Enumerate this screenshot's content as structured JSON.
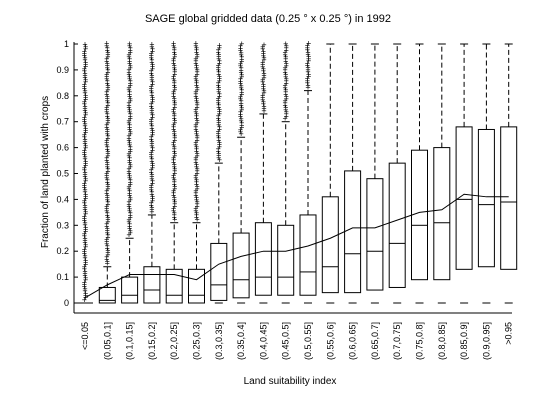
{
  "chart_data": {
    "type": "box",
    "title": "SAGE global gridded data (0.25 ° x 0.25 °) in 1992",
    "xlabel": "Land suitability index",
    "ylabel": "Fraction of land planted with crops",
    "ylim": [
      0,
      1
    ],
    "yticks": [
      "0",
      "0.1",
      "0.2",
      "0.3",
      "0.4",
      "0.5",
      "0.6",
      "0.7",
      "0.8",
      "0.9",
      "1"
    ],
    "categories": [
      "<=0.05",
      "(0.05,0.1]",
      "(0.1,0.15]",
      "(0.15,0.2]",
      "(0.2,0.25]",
      "(0.25,0.3]",
      "(0.3,0.35]",
      "(0.35,0.4]",
      "(0.4,0.45]",
      "(0.45,0.5]",
      "(0.5,0.55]",
      "(0.55,0.6]",
      "(0.6,0.65]",
      "(0.65,0.7]",
      "(0.7,0.75]",
      "(0.75,0.8]",
      "(0.8,0.85]",
      "(0.85,0.9]",
      "(0.9,0.95]",
      ">0.95"
    ],
    "boxes": [
      {
        "q1": 0.0,
        "median": 0.0,
        "q3": 0.0,
        "whisker_high": 0.0,
        "outliers_from": 0.01
      },
      {
        "q1": 0.0,
        "median": 0.01,
        "q3": 0.06,
        "whisker_high": 0.14,
        "outliers_from": 0.15
      },
      {
        "q1": 0.0,
        "median": 0.03,
        "q3": 0.1,
        "whisker_high": 0.25,
        "outliers_from": 0.26
      },
      {
        "q1": 0.0,
        "median": 0.05,
        "q3": 0.14,
        "whisker_high": 0.34,
        "outliers_from": 0.35
      },
      {
        "q1": 0.0,
        "median": 0.03,
        "q3": 0.13,
        "whisker_high": 0.31,
        "outliers_from": 0.32
      },
      {
        "q1": 0.0,
        "median": 0.03,
        "q3": 0.13,
        "whisker_high": 0.31,
        "outliers_from": 0.32
      },
      {
        "q1": 0.01,
        "median": 0.07,
        "q3": 0.23,
        "whisker_high": 0.54,
        "outliers_from": 0.55
      },
      {
        "q1": 0.02,
        "median": 0.09,
        "q3": 0.27,
        "whisker_high": 0.64,
        "outliers_from": 0.65
      },
      {
        "q1": 0.03,
        "median": 0.1,
        "q3": 0.31,
        "whisker_high": 0.73,
        "outliers_from": 0.74
      },
      {
        "q1": 0.03,
        "median": 0.1,
        "q3": 0.3,
        "whisker_high": 0.7,
        "outliers_from": 0.71
      },
      {
        "q1": 0.03,
        "median": 0.12,
        "q3": 0.34,
        "whisker_high": 0.82,
        "outliers_from": 0.83
      },
      {
        "q1": 0.04,
        "median": 0.14,
        "q3": 0.41,
        "whisker_high": 1.0,
        "outliers_from": null
      },
      {
        "q1": 0.04,
        "median": 0.19,
        "q3": 0.51,
        "whisker_high": 1.0,
        "outliers_from": null
      },
      {
        "q1": 0.05,
        "median": 0.2,
        "q3": 0.48,
        "whisker_high": 1.0,
        "outliers_from": null
      },
      {
        "q1": 0.06,
        "median": 0.23,
        "q3": 0.54,
        "whisker_high": 1.0,
        "outliers_from": null
      },
      {
        "q1": 0.09,
        "median": 0.3,
        "q3": 0.59,
        "whisker_high": 1.0,
        "outliers_from": null
      },
      {
        "q1": 0.09,
        "median": 0.31,
        "q3": 0.6,
        "whisker_high": 1.0,
        "outliers_from": null
      },
      {
        "q1": 0.13,
        "median": 0.4,
        "q3": 0.68,
        "whisker_high": 1.0,
        "outliers_from": null
      },
      {
        "q1": 0.14,
        "median": 0.38,
        "q3": 0.67,
        "whisker_high": 1.0,
        "outliers_from": null
      },
      {
        "q1": 0.13,
        "median": 0.39,
        "q3": 0.68,
        "whisker_high": 1.0,
        "outliers_from": null
      }
    ],
    "mean_line": [
      0.02,
      0.07,
      0.11,
      0.11,
      0.11,
      0.09,
      0.15,
      0.18,
      0.2,
      0.2,
      0.22,
      0.25,
      0.29,
      0.29,
      0.32,
      0.35,
      0.36,
      0.42,
      0.41,
      0.41
    ],
    "grid": false,
    "legend": "none"
  }
}
